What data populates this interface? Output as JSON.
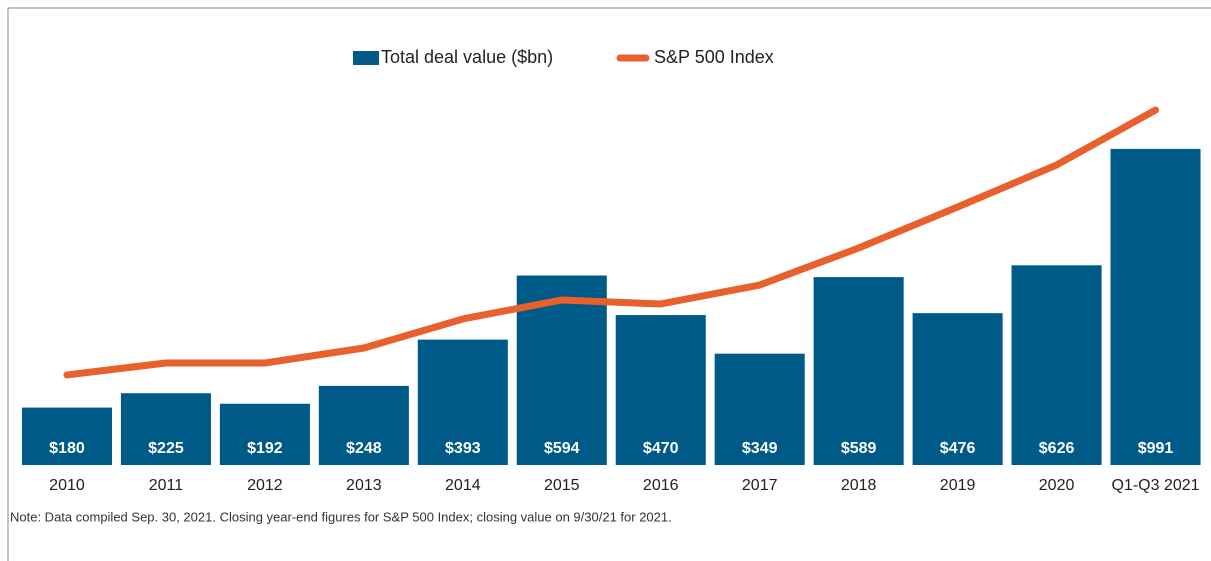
{
  "chart_data": {
    "type": "bar",
    "categories": [
      "2010",
      "2011",
      "2012",
      "2013",
      "2014",
      "2015",
      "2016",
      "2017",
      "2018",
      "2019",
      "2020",
      "Q1-Q3 2021"
    ],
    "series": [
      {
        "name": "Total deal value ($bn)",
        "color": "#005a87",
        "type": "bar",
        "values": [
          180,
          225,
          192,
          248,
          393,
          594,
          470,
          349,
          589,
          476,
          626,
          991
        ],
        "value_labels": [
          "$180",
          "$225",
          "$192",
          "$248",
          "$393",
          "$594",
          "$470",
          "$349",
          "$589",
          "$476",
          "$626",
          "$991"
        ]
      },
      {
        "name": "S&P 500 Index",
        "color": "#e8602c",
        "type": "line",
        "axis": "y2",
        "values": [
          1129,
          1279,
          1279,
          1467,
          1831,
          2069,
          2019,
          2257,
          2721,
          3235,
          3762,
          4451
        ]
      }
    ],
    "ylim": [
      0,
      1000
    ],
    "y2lim": [
      0,
      4000
    ],
    "note": "Note: Data compiled Sep. 30, 2021. Closing year-end figures for S&P 500 Index; closing value on 9/30/21 for 2021."
  }
}
